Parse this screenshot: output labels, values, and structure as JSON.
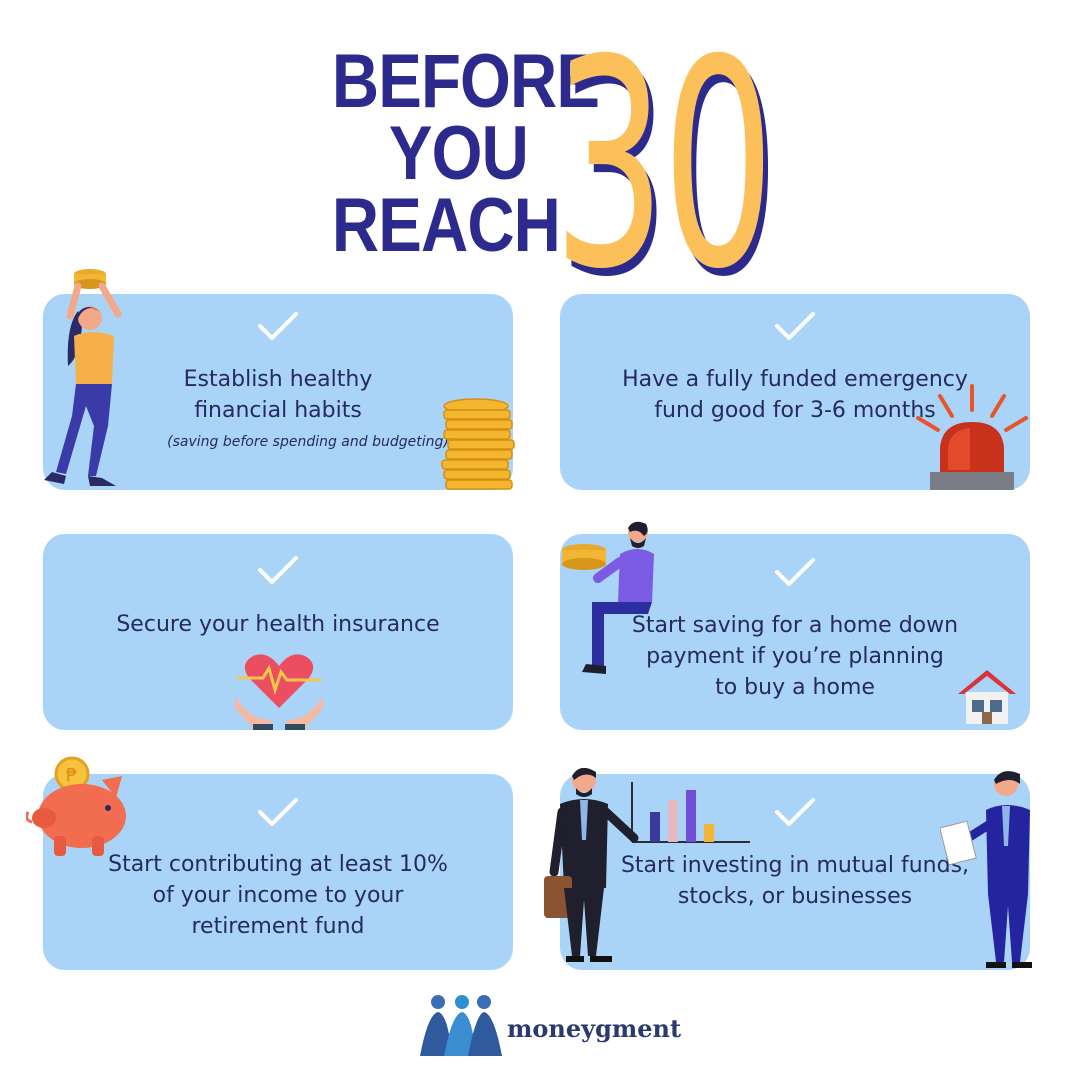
{
  "title": {
    "line1": "BEFORE",
    "line2": "YOU",
    "line3": "REACH",
    "number": "30"
  },
  "colors": {
    "navy": "#2d2a8e",
    "gold": "#fcc05a",
    "card": "#a9d4f8",
    "text": "#262a5e"
  },
  "cards": [
    {
      "lines": [
        "Establish healthy",
        "financial habits"
      ],
      "note": "(saving before spending and budgeting)",
      "icon": "woman-lifting-coins-icon"
    },
    {
      "lines": [
        "Have a fully funded emergency",
        "fund good for 3-6 months"
      ],
      "icon": "alarm-siren-icon"
    },
    {
      "lines": [
        "Secure your health insurance"
      ],
      "icon": "heart-in-hands-icon"
    },
    {
      "lines": [
        "Start saving for a home down",
        "payment if you’re planning",
        "to buy a home"
      ],
      "icon": "house-icon"
    },
    {
      "lines": [
        "Start contributing at least 10%",
        "of your income to your",
        "retirement fund"
      ],
      "icon": "piggy-bank-icon"
    },
    {
      "lines": [
        "Start investing in mutual funds,",
        "stocks, or businesses"
      ],
      "icon": "investors-chart-icon"
    }
  ],
  "brand": {
    "name": "moneygment"
  }
}
